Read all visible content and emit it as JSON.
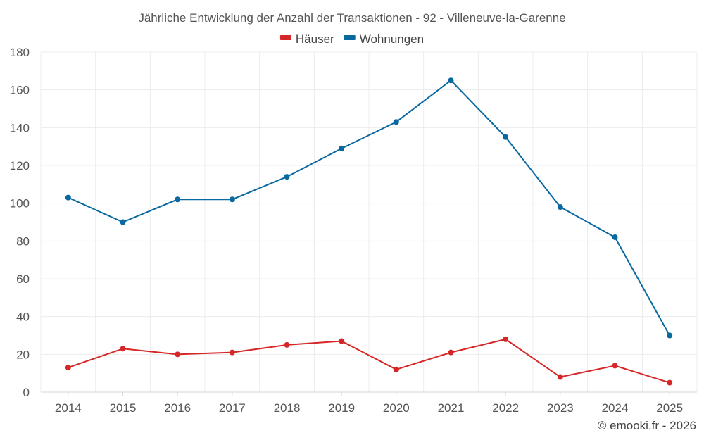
{
  "chart_data": {
    "type": "line",
    "title": "Jährliche Entwicklung der Anzahl der Transaktionen - 92 - Villeneuve-la-Garenne",
    "categories": [
      "2014",
      "2015",
      "2016",
      "2017",
      "2018",
      "2019",
      "2020",
      "2021",
      "2022",
      "2023",
      "2024",
      "2025"
    ],
    "series": [
      {
        "name": "Häuser",
        "color": "#d62728",
        "values": [
          13,
          23,
          20,
          21,
          25,
          27,
          12,
          21,
          28,
          8,
          14,
          5
        ]
      },
      {
        "name": "Wohnungen",
        "color": "#0868a0",
        "values": [
          103,
          90,
          102,
          102,
          114,
          129,
          143,
          165,
          135,
          98,
          82,
          30
        ]
      }
    ],
    "xlabel": "",
    "ylabel": "",
    "ylim": [
      0,
      180
    ],
    "yticks": [
      0,
      20,
      40,
      60,
      80,
      100,
      120,
      140,
      160,
      180
    ],
    "grid": true,
    "legend": "top-center"
  },
  "credit": "© emooki.fr - 2026"
}
